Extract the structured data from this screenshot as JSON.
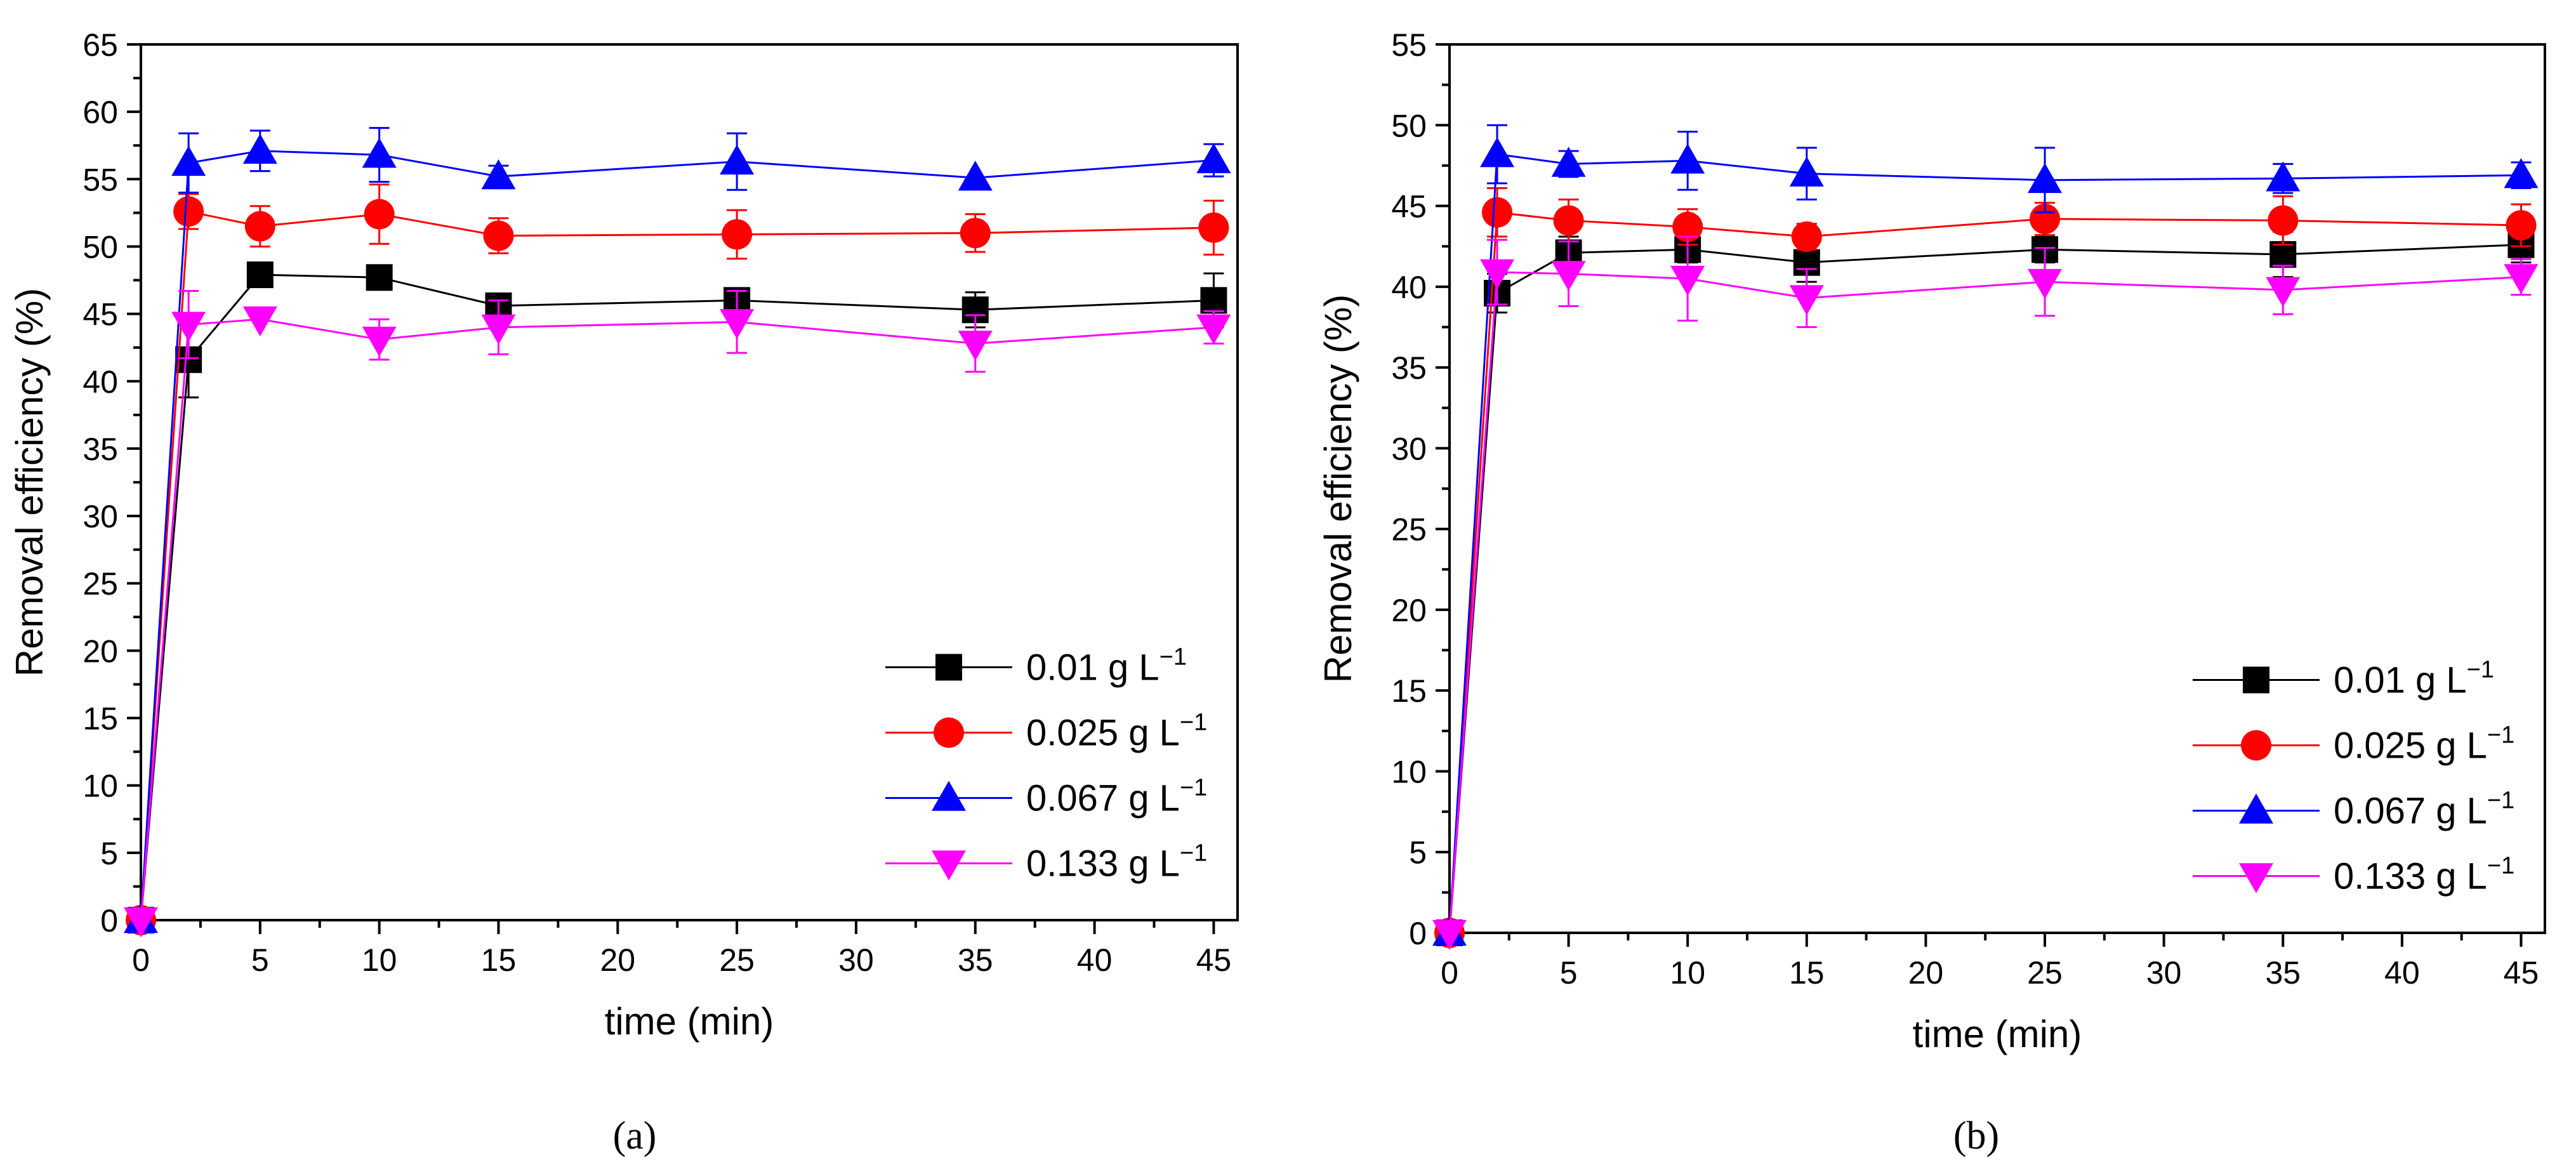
{
  "chart_data": [
    {
      "type": "line",
      "panel_label": "(a)",
      "xlabel": "time (min)",
      "ylabel": "Removal efficiency (%)",
      "xlim": [
        0,
        46
      ],
      "ylim": [
        0,
        65
      ],
      "x_ticks": [
        "0",
        "5",
        "10",
        "15",
        "20",
        "25",
        "30",
        "35",
        "40",
        "45"
      ],
      "y_ticks": [
        "0",
        "5",
        "10",
        "15",
        "20",
        "25",
        "30",
        "35",
        "40",
        "45",
        "50",
        "55",
        "60",
        "65"
      ],
      "legend_position": "bottom-right",
      "grid": false,
      "x": [
        0,
        2,
        5,
        10,
        15,
        25,
        35,
        45
      ],
      "series": [
        {
          "name": "0.01 g L",
          "superscript": "−1",
          "color": "#000000",
          "marker": "square",
          "values": [
            0,
            41.6,
            47.9,
            47.7,
            45.6,
            46.0,
            45.3,
            46.0
          ],
          "errors": [
            0,
            2.8,
            0,
            0,
            0.8,
            0.8,
            1.3,
            2.0
          ]
        },
        {
          "name": "0.025 g L",
          "superscript": "−1",
          "color": "#ff0000",
          "marker": "circle",
          "values": [
            0,
            52.6,
            51.5,
            52.4,
            50.8,
            50.9,
            51.0,
            51.4
          ],
          "errors": [
            0,
            1.3,
            1.5,
            2.2,
            1.3,
            1.8,
            1.4,
            2.0
          ]
        },
        {
          "name": "0.067 g L",
          "superscript": "−1",
          "color": "#0000ff",
          "marker": "triangle-up",
          "values": [
            0,
            56.2,
            57.1,
            56.8,
            55.2,
            56.3,
            55.1,
            56.4
          ],
          "errors": [
            0,
            2.2,
            1.5,
            2.0,
            0.8,
            2.1,
            0,
            1.2
          ]
        },
        {
          "name": "0.133 g L",
          "superscript": "−1",
          "color": "#ff00ff",
          "marker": "triangle-down",
          "values": [
            0,
            44.2,
            44.6,
            43.1,
            44.0,
            44.4,
            42.8,
            44.0
          ],
          "errors": [
            0,
            2.5,
            0,
            1.5,
            2.0,
            2.3,
            2.1,
            1.2
          ]
        }
      ]
    },
    {
      "type": "line",
      "panel_label": "(b)",
      "xlabel": "time (min)",
      "ylabel": "Removal efficiency (%)",
      "xlim": [
        0,
        46
      ],
      "ylim": [
        0,
        55
      ],
      "x_ticks": [
        "0",
        "5",
        "10",
        "15",
        "20",
        "25",
        "30",
        "35",
        "40",
        "45"
      ],
      "y_ticks": [
        "0",
        "5",
        "10",
        "15",
        "20",
        "25",
        "30",
        "35",
        "40",
        "45",
        "50",
        "55"
      ],
      "legend_position": "bottom-right",
      "grid": false,
      "x": [
        0,
        2,
        5,
        10,
        15,
        25,
        35,
        45
      ],
      "series": [
        {
          "name": "0.01 g L",
          "superscript": "−1",
          "color": "#000000",
          "marker": "square",
          "values": [
            0,
            39.6,
            42.1,
            42.3,
            41.5,
            42.3,
            42.0,
            42.6
          ],
          "errors": [
            0,
            1.2,
            1.0,
            0.8,
            1.2,
            0.8,
            1.4,
            1.1
          ]
        },
        {
          "name": "0.025 g L",
          "superscript": "−1",
          "color": "#ff0000",
          "marker": "circle",
          "values": [
            0,
            44.6,
            44.1,
            43.7,
            43.1,
            44.2,
            44.1,
            43.8
          ],
          "errors": [
            0,
            1.5,
            1.3,
            1.1,
            0.8,
            1.0,
            1.5,
            1.3
          ]
        },
        {
          "name": "0.067 g L",
          "superscript": "−1",
          "color": "#0000ff",
          "marker": "triangle-up",
          "values": [
            0,
            48.2,
            47.6,
            47.8,
            47.0,
            46.6,
            46.7,
            46.9
          ],
          "errors": [
            0,
            1.8,
            0.8,
            1.8,
            1.6,
            2.0,
            0.9,
            0.8
          ]
        },
        {
          "name": "0.133 g L",
          "superscript": "−1",
          "color": "#ff00ff",
          "marker": "triangle-down",
          "values": [
            0,
            40.9,
            40.8,
            40.5,
            39.3,
            40.3,
            39.8,
            40.6
          ],
          "errors": [
            0,
            2.0,
            2.0,
            2.6,
            1.8,
            2.1,
            1.5,
            1.1
          ]
        }
      ]
    }
  ]
}
